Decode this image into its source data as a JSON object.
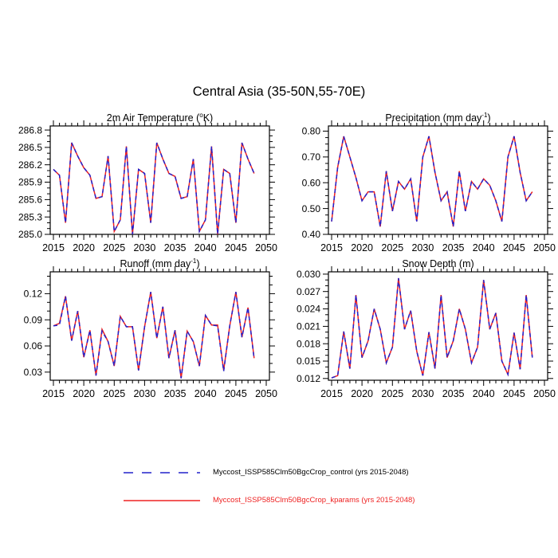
{
  "figure": {
    "title": "Central Asia (35-50N,55-70E)"
  },
  "legend": {
    "position": "bottom",
    "entries": [
      {
        "label": "Myccost_ISSP585Clm50BgcCrop_control (yrs 2015-2048)",
        "color": "#2222cc",
        "style": "dashed",
        "text_color": "#000000"
      },
      {
        "label": "Myccost_ISSP585Clm50BgcCrop_kparams (yrs 2015-2048)",
        "color": "#ee2222",
        "style": "solid",
        "text_color": "#ee2222"
      }
    ]
  },
  "chart_data": [
    {
      "type": "line",
      "title": {
        "pre": "2m Air Temperature (",
        "sup": "o",
        "tail": "K)"
      },
      "years": [
        2015,
        2016,
        2017,
        2018,
        2019,
        2020,
        2021,
        2022,
        2023,
        2024,
        2025,
        2026,
        2027,
        2028,
        2029,
        2030,
        2031,
        2032,
        2033,
        2034,
        2035,
        2036,
        2037,
        2038,
        2039,
        2040,
        2041,
        2042,
        2043,
        2044,
        2045,
        2046,
        2047,
        2048
      ],
      "x_ticks": [
        2015,
        2020,
        2025,
        2030,
        2035,
        2040,
        2045,
        2050
      ],
      "x_minor_step": 1,
      "xlim_frame": [
        2014.48,
        2050.52
      ],
      "y_ticks": [
        286.8,
        286.5,
        286.2,
        285.9,
        285.6,
        285.3,
        285.0
      ],
      "y_tick_labels": [
        "286.8",
        "286.5",
        "286.2",
        "285.9",
        "285.6",
        "285.3",
        "285.0"
      ],
      "y_minor_step": 0.1,
      "ylim_frame": [
        285.0,
        286.87
      ],
      "grid": false,
      "series": [
        {
          "name": "control",
          "color": "#2222cc",
          "style": "dashed",
          "values": [
            286.12,
            286.02,
            285.2,
            286.58,
            286.35,
            286.15,
            286.02,
            285.62,
            285.65,
            286.35,
            285.05,
            285.25,
            286.52,
            285.0,
            286.12,
            286.05,
            285.2,
            286.58,
            286.3,
            286.05,
            286.0,
            285.62,
            285.65,
            286.3,
            285.05,
            285.25,
            286.52,
            285.0,
            286.12,
            286.05,
            285.2,
            286.58,
            286.3,
            286.05
          ]
        },
        {
          "name": "kparams",
          "color": "#ee2222",
          "style": "solid",
          "values": [
            286.12,
            286.02,
            285.2,
            286.58,
            286.35,
            286.15,
            286.02,
            285.62,
            285.65,
            286.35,
            285.05,
            285.25,
            286.52,
            285.0,
            286.12,
            286.05,
            285.2,
            286.58,
            286.3,
            286.05,
            286.0,
            285.62,
            285.65,
            286.3,
            285.05,
            285.25,
            286.52,
            285.0,
            286.12,
            286.05,
            285.2,
            286.58,
            286.3,
            286.05
          ]
        }
      ]
    },
    {
      "type": "line",
      "title": {
        "pre": "Precipitation (mm day",
        "sup": "-1",
        "tail": ")"
      },
      "years": [
        2015,
        2016,
        2017,
        2018,
        2019,
        2020,
        2021,
        2022,
        2023,
        2024,
        2025,
        2026,
        2027,
        2028,
        2029,
        2030,
        2031,
        2032,
        2033,
        2034,
        2035,
        2036,
        2037,
        2038,
        2039,
        2040,
        2041,
        2042,
        2043,
        2044,
        2045,
        2046,
        2047,
        2048
      ],
      "x_ticks": [
        2015,
        2020,
        2025,
        2030,
        2035,
        2040,
        2045,
        2050
      ],
      "x_minor_step": 1,
      "xlim_frame": [
        2014.48,
        2050.52
      ],
      "y_ticks": [
        0.8,
        0.7,
        0.6,
        0.5,
        0.4
      ],
      "y_tick_labels": [
        "0.80",
        "0.70",
        "0.60",
        "0.50",
        "0.40"
      ],
      "y_minor_step": 0.025,
      "ylim_frame": [
        0.4,
        0.82
      ],
      "grid": false,
      "series": [
        {
          "name": "control",
          "color": "#2222cc",
          "style": "dashed",
          "values": [
            0.45,
            0.66,
            0.78,
            0.7,
            0.62,
            0.53,
            0.565,
            0.565,
            0.43,
            0.645,
            0.49,
            0.605,
            0.575,
            0.615,
            0.45,
            0.7,
            0.78,
            0.64,
            0.53,
            0.565,
            0.43,
            0.645,
            0.49,
            0.605,
            0.575,
            0.615,
            0.59,
            0.53,
            0.45,
            0.7,
            0.78,
            0.64,
            0.53,
            0.565
          ]
        },
        {
          "name": "kparams",
          "color": "#ee2222",
          "style": "solid",
          "values": [
            0.45,
            0.66,
            0.78,
            0.7,
            0.62,
            0.53,
            0.565,
            0.565,
            0.43,
            0.645,
            0.49,
            0.605,
            0.575,
            0.615,
            0.45,
            0.7,
            0.78,
            0.64,
            0.53,
            0.565,
            0.43,
            0.645,
            0.49,
            0.605,
            0.575,
            0.615,
            0.59,
            0.53,
            0.45,
            0.7,
            0.78,
            0.64,
            0.53,
            0.565
          ]
        }
      ]
    },
    {
      "type": "line",
      "title": {
        "pre": "Runoff (mm day",
        "sup": "-1",
        "tail": ")"
      },
      "years": [
        2015,
        2016,
        2017,
        2018,
        2019,
        2020,
        2021,
        2022,
        2023,
        2024,
        2025,
        2026,
        2027,
        2028,
        2029,
        2030,
        2031,
        2032,
        2033,
        2034,
        2035,
        2036,
        2037,
        2038,
        2039,
        2040,
        2041,
        2042,
        2043,
        2044,
        2045,
        2046,
        2047,
        2048
      ],
      "x_ticks": [
        2015,
        2020,
        2025,
        2030,
        2035,
        2040,
        2045,
        2050
      ],
      "x_minor_step": 1,
      "xlim_frame": [
        2014.48,
        2050.52
      ],
      "y_ticks": [
        0.12,
        0.09,
        0.06,
        0.03
      ],
      "y_tick_labels": [
        "0.12",
        "0.09",
        "0.06",
        "0.03"
      ],
      "y_minor_step": 0.01,
      "ylim_frame": [
        0.0207,
        0.145
      ],
      "grid": false,
      "series": [
        {
          "name": "control",
          "color": "#2222cc",
          "style": "dashed",
          "values": [
            0.083,
            0.084,
            0.117,
            0.066,
            0.1,
            0.047,
            0.078,
            0.026,
            0.077,
            0.065,
            0.037,
            0.094,
            0.082,
            0.082,
            0.032,
            0.082,
            0.122,
            0.069,
            0.105,
            0.046,
            0.078,
            0.023,
            0.077,
            0.065,
            0.037,
            0.095,
            0.084,
            0.083,
            0.031,
            0.083,
            0.122,
            0.07,
            0.104,
            0.045
          ]
        },
        {
          "name": "kparams",
          "color": "#ee2222",
          "style": "solid",
          "values": [
            0.083,
            0.086,
            0.117,
            0.066,
            0.1,
            0.047,
            0.078,
            0.026,
            0.079,
            0.065,
            0.037,
            0.094,
            0.082,
            0.082,
            0.032,
            0.082,
            0.122,
            0.069,
            0.105,
            0.046,
            0.078,
            0.023,
            0.077,
            0.065,
            0.037,
            0.095,
            0.084,
            0.084,
            0.032,
            0.083,
            0.122,
            0.07,
            0.104,
            0.046
          ]
        }
      ]
    },
    {
      "type": "line",
      "title": {
        "pre": "Snow Depth (m)",
        "sup": "",
        "tail": ""
      },
      "years": [
        2015,
        2016,
        2017,
        2018,
        2019,
        2020,
        2021,
        2022,
        2023,
        2024,
        2025,
        2026,
        2027,
        2028,
        2029,
        2030,
        2031,
        2032,
        2033,
        2034,
        2035,
        2036,
        2037,
        2038,
        2039,
        2040,
        2041,
        2042,
        2043,
        2044,
        2045,
        2046,
        2047,
        2048
      ],
      "x_ticks": [
        2015,
        2020,
        2025,
        2030,
        2035,
        2040,
        2045,
        2050
      ],
      "x_minor_step": 1,
      "xlim_frame": [
        2014.48,
        2050.52
      ],
      "y_ticks": [
        0.03,
        0.027,
        0.024,
        0.021,
        0.018,
        0.015,
        0.012
      ],
      "y_tick_labels": [
        "0.030",
        "0.027",
        "0.024",
        "0.021",
        "0.018",
        "0.015",
        "0.012"
      ],
      "y_minor_step": 0.001,
      "ylim_frame": [
        0.0117,
        0.0304
      ],
      "grid": false,
      "series": [
        {
          "name": "control",
          "color": "#2222cc",
          "style": "dashed",
          "values": [
            0.0121,
            0.0125,
            0.0201,
            0.0137,
            0.0264,
            0.0156,
            0.0185,
            0.024,
            0.0205,
            0.0147,
            0.0174,
            0.0293,
            0.0205,
            0.0237,
            0.0167,
            0.0125,
            0.02,
            0.0137,
            0.0264,
            0.0156,
            0.0185,
            0.024,
            0.0205,
            0.0147,
            0.0174,
            0.029,
            0.0205,
            0.0233,
            0.015,
            0.0127,
            0.0199,
            0.0136,
            0.0264,
            0.0156
          ]
        },
        {
          "name": "kparams",
          "color": "#ee2222",
          "style": "solid",
          "values": [
            0.0121,
            0.0125,
            0.0201,
            0.0137,
            0.0264,
            0.0156,
            0.0185,
            0.024,
            0.0205,
            0.0147,
            0.0174,
            0.0293,
            0.0205,
            0.0237,
            0.0167,
            0.0125,
            0.02,
            0.0137,
            0.0264,
            0.0156,
            0.0185,
            0.024,
            0.0205,
            0.0147,
            0.0174,
            0.029,
            0.0205,
            0.0233,
            0.015,
            0.0127,
            0.0199,
            0.0136,
            0.0264,
            0.0156
          ]
        }
      ]
    }
  ]
}
